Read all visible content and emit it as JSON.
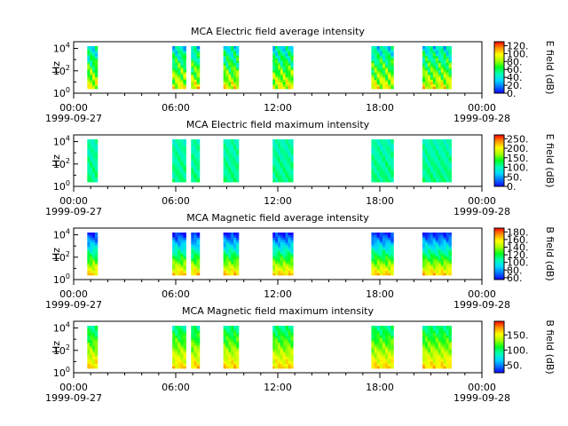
{
  "chart_data": [
    {
      "type": "heatmap",
      "title": "MCA  Electric field average intensity",
      "ylabel": "Hz",
      "colorbar_label": "E field (dB)",
      "colorbar_ticks": [
        "0.",
        "20.",
        "40.",
        "60.",
        "80.",
        "100.",
        "120."
      ],
      "colorbar_range": [
        0,
        130
      ],
      "y_ticks": [
        {
          "base": "10",
          "exp": "0"
        },
        {
          "base": "10",
          "exp": "2"
        },
        {
          "base": "10",
          "exp": "4"
        }
      ],
      "x_ticks": [
        "00:00",
        "06:00",
        "12:00",
        "18:00",
        "00:00"
      ],
      "x_dates": [
        "1999-09-27",
        "1999-09-28"
      ],
      "segments": [
        [
          0.8,
          1.4
        ],
        [
          5.8,
          6.6
        ],
        [
          6.9,
          7.4
        ],
        [
          8.8,
          9.7
        ],
        [
          11.7,
          12.9
        ],
        [
          17.5,
          18.8
        ],
        [
          20.5,
          22.2
        ]
      ],
      "profile": "avg_e"
    },
    {
      "type": "heatmap",
      "title": "MCA  Electric field maximum intensity",
      "ylabel": "Hz",
      "colorbar_label": "E field (dB)",
      "colorbar_ticks": [
        "0.",
        "50.",
        "100.",
        "150.",
        "200.",
        "250."
      ],
      "colorbar_range": [
        0,
        270
      ],
      "y_ticks": [
        {
          "base": "10",
          "exp": "0"
        },
        {
          "base": "10",
          "exp": "2"
        },
        {
          "base": "10",
          "exp": "4"
        }
      ],
      "x_ticks": [
        "00:00",
        "06:00",
        "12:00",
        "18:00",
        "00:00"
      ],
      "x_dates": [
        "1999-09-27",
        "1999-09-28"
      ],
      "segments": [
        [
          0.8,
          1.4
        ],
        [
          5.8,
          6.6
        ],
        [
          6.9,
          7.4
        ],
        [
          8.8,
          9.7
        ],
        [
          11.7,
          12.9
        ],
        [
          17.5,
          18.8
        ],
        [
          20.5,
          22.2
        ]
      ],
      "profile": "max_e"
    },
    {
      "type": "heatmap",
      "title": "MCA  Magnetic field average intensity",
      "ylabel": "Hz",
      "colorbar_label": "B field (dB)",
      "colorbar_ticks": [
        "60.",
        "80.",
        "100.",
        "120.",
        "140.",
        "160.",
        "180."
      ],
      "colorbar_range": [
        55,
        190
      ],
      "y_ticks": [
        {
          "base": "10",
          "exp": "0"
        },
        {
          "base": "10",
          "exp": "2"
        },
        {
          "base": "10",
          "exp": "4"
        }
      ],
      "x_ticks": [
        "00:00",
        "06:00",
        "12:00",
        "18:00",
        "00:00"
      ],
      "x_dates": [
        "1999-09-27",
        "1999-09-28"
      ],
      "segments": [
        [
          0.8,
          1.4
        ],
        [
          5.8,
          6.6
        ],
        [
          6.9,
          7.4
        ],
        [
          8.8,
          9.7
        ],
        [
          11.7,
          12.9
        ],
        [
          17.5,
          18.8
        ],
        [
          20.5,
          22.2
        ]
      ],
      "profile": "avg_b"
    },
    {
      "type": "heatmap",
      "title": "MCA  Magnetic field maximum intensity",
      "ylabel": "Hz",
      "colorbar_label": "B field (dB)",
      "colorbar_ticks": [
        "50.",
        "100.",
        "150."
      ],
      "colorbar_range": [
        25,
        195
      ],
      "y_ticks": [
        {
          "base": "10",
          "exp": "0"
        },
        {
          "base": "10",
          "exp": "2"
        },
        {
          "base": "10",
          "exp": "4"
        }
      ],
      "x_ticks": [
        "00:00",
        "06:00",
        "12:00",
        "18:00",
        "00:00"
      ],
      "x_dates": [
        "1999-09-27",
        "1999-09-28"
      ],
      "segments": [
        [
          0.8,
          1.4
        ],
        [
          5.8,
          6.6
        ],
        [
          6.9,
          7.4
        ],
        [
          8.8,
          9.7
        ],
        [
          11.7,
          12.9
        ],
        [
          17.5,
          18.8
        ],
        [
          20.5,
          22.2
        ]
      ],
      "profile": "max_b"
    }
  ]
}
